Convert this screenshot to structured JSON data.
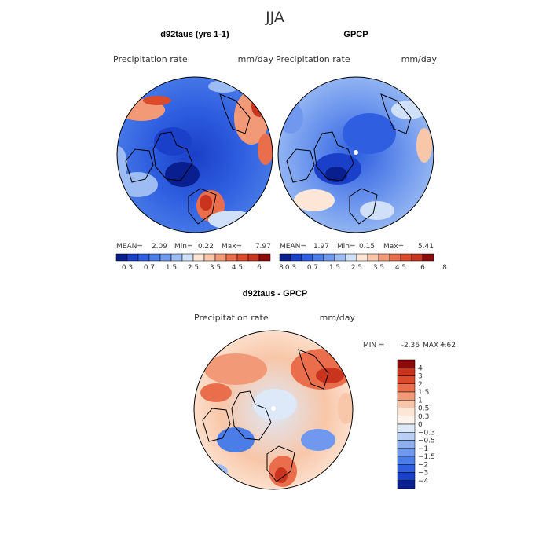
{
  "chart_data": {
    "type": "polar-contour-map",
    "title": "JJA",
    "panels": [
      {
        "title": "d92taus (yrs 1-1)",
        "variable": "Precipitation rate",
        "units": "mm/day",
        "stats": {
          "mean_label": "MEAN=",
          "mean": "2.09",
          "min_label": "Min=",
          "min": "0.22",
          "max_label": "Max=",
          "max": "7.97"
        }
      },
      {
        "title": "GPCP",
        "variable": "Precipitation rate",
        "units": "mm/day",
        "stats": {
          "mean_label": "MEAN=",
          "mean": "1.97",
          "min_label": "Min=",
          "min": "0.15",
          "max_label": "Max=",
          "max": "5.41"
        }
      },
      {
        "title": "d92taus - GPCP",
        "variable": "Precipitation rate",
        "units": "mm/day",
        "stats": {
          "min_label": "MIN =",
          "min": "-2.36",
          "max_label": "MAX =",
          "max": "4.62"
        }
      }
    ],
    "colorbar_abs": {
      "levels": [
        "0.3",
        "0.7",
        "1.5",
        "2.5",
        "3.5",
        "4.5",
        "6",
        "8"
      ],
      "colors": [
        "#0a1f8f",
        "#1a3fc8",
        "#2f5fe0",
        "#4b7de8",
        "#6f98ee",
        "#9cbcf3",
        "#cfe0f8",
        "#fde6d6",
        "#f8c6a8",
        "#f29a78",
        "#ea6e4c",
        "#dc4a2c",
        "#c8341e",
        "#8b0a0a"
      ]
    },
    "colorbar_diff": {
      "levels": [
        "4",
        "3",
        "2",
        "1.5",
        "1",
        "0.5",
        "0.3",
        "0",
        "−0.3",
        "−0.5",
        "−1",
        "−1.5",
        "−2",
        "−3",
        "−4"
      ],
      "colors": [
        "#8b0a0a",
        "#c8341e",
        "#dc4a2c",
        "#ea6e4c",
        "#f29a78",
        "#f8c6a8",
        "#fde6d6",
        "#fdf3ec",
        "#dde8f8",
        "#b8cff3",
        "#8fb0ee",
        "#6f98ee",
        "#4b7de8",
        "#2f5fe0",
        "#1a3fc8",
        "#0a1f8f"
      ]
    }
  }
}
